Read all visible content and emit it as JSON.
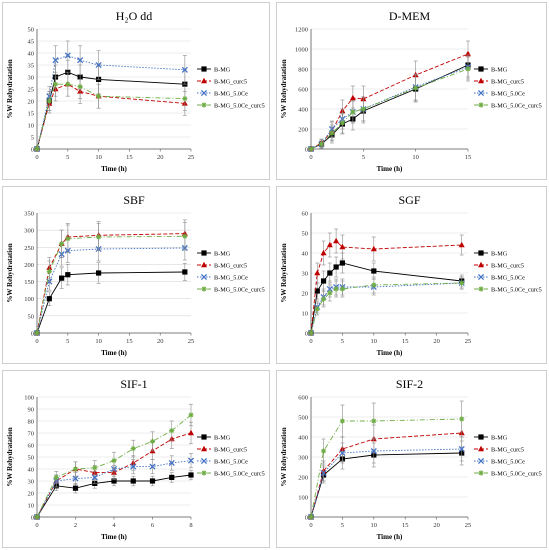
{
  "colors": {
    "B-MG": "#000000",
    "B-MG_curc5": "#c00000",
    "B-MG_5.0Ce": "#4472c4",
    "B-MG_5.0Ce_curc5": "#70ad47",
    "axis": "#595959",
    "grid": "#d9d9d9",
    "error": "#8c8c8c"
  },
  "series_names": [
    "B-MG",
    "B-MG_curc5",
    "B-MG_5.0Ce",
    "B-MG_5.0Ce_curc5"
  ],
  "markers": [
    "square",
    "triangle",
    "x",
    "star"
  ],
  "line_styles": [
    "solid",
    "dashed",
    "dotted",
    "dashdot"
  ],
  "chart_data": [
    {
      "id": "h2o",
      "type": "line",
      "title": "H₂O dd",
      "xlabel": "Time (h)",
      "ylabel": "%W Rehydratation",
      "xlim": [
        0,
        25
      ],
      "ylim": [
        0,
        50
      ],
      "xticks": [
        0,
        5,
        10,
        15,
        20,
        25
      ],
      "yticks": [
        0,
        5,
        10,
        15,
        20,
        25,
        30,
        35,
        40,
        45,
        50
      ],
      "legend": "right",
      "x": [
        0,
        2,
        3,
        5,
        7,
        10,
        24
      ],
      "series": [
        {
          "name": "B-MG",
          "values": [
            0,
            20,
            30,
            32,
            30,
            29,
            27
          ],
          "err": [
            0,
            4,
            5,
            5,
            5,
            6,
            6
          ]
        },
        {
          "name": "B-MG_curc5",
          "values": [
            0,
            19,
            25,
            27,
            24,
            22,
            19
          ],
          "err": [
            0,
            4,
            5,
            5,
            5,
            5,
            5
          ]
        },
        {
          "name": "B-MG_5.0Ce",
          "values": [
            0,
            22,
            37,
            39,
            37,
            35,
            33
          ],
          "err": [
            0,
            4,
            6,
            6,
            6,
            6,
            6
          ]
        },
        {
          "name": "B-MG_5.0Ce_curc5",
          "values": [
            0,
            20,
            27,
            27,
            26,
            22,
            21
          ],
          "err": [
            0,
            4,
            5,
            5,
            5,
            5,
            5
          ]
        }
      ]
    },
    {
      "id": "dmem",
      "type": "line",
      "title": "D-MEM",
      "xlabel": "Time (h)",
      "ylabel": "%W Rehydratation",
      "xlim": [
        0,
        15
      ],
      "ylim": [
        0,
        1200
      ],
      "xticks": [
        0,
        5,
        10,
        15
      ],
      "yticks": [
        0,
        200,
        400,
        600,
        800,
        1000,
        1200
      ],
      "legend": "right",
      "x": [
        0,
        1,
        2,
        3,
        4,
        5,
        10,
        15
      ],
      "series": [
        {
          "name": "B-MG",
          "values": [
            0,
            50,
            140,
            250,
            300,
            380,
            600,
            840
          ],
          "err": [
            0,
            40,
            80,
            100,
            110,
            120,
            130,
            120
          ]
        },
        {
          "name": "B-MG_curc5",
          "values": [
            0,
            60,
            180,
            380,
            510,
            500,
            740,
            950
          ],
          "err": [
            0,
            40,
            90,
            110,
            120,
            130,
            140,
            130
          ]
        },
        {
          "name": "B-MG_5.0Ce",
          "values": [
            0,
            50,
            200,
            300,
            370,
            400,
            620,
            820
          ],
          "err": [
            0,
            40,
            80,
            100,
            110,
            120,
            130,
            120
          ]
        },
        {
          "name": "B-MG_5.0Ce_curc5",
          "values": [
            0,
            50,
            160,
            260,
            370,
            400,
            610,
            800
          ],
          "err": [
            0,
            40,
            80,
            100,
            110,
            120,
            130,
            120
          ]
        }
      ]
    },
    {
      "id": "sbf",
      "type": "line",
      "title": "SBF",
      "xlabel": "Time (h)",
      "ylabel": "%W Rehydratation",
      "xlim": [
        0,
        25
      ],
      "ylim": [
        0,
        350
      ],
      "xticks": [
        0,
        5,
        10,
        15,
        20,
        25
      ],
      "yticks": [
        0,
        50,
        100,
        150,
        200,
        250,
        300,
        350
      ],
      "legend": "right",
      "x": [
        0,
        2,
        4,
        5,
        10,
        24
      ],
      "series": [
        {
          "name": "B-MG",
          "values": [
            0,
            100,
            160,
            170,
            175,
            178
          ],
          "err": [
            0,
            20,
            30,
            30,
            30,
            25
          ]
        },
        {
          "name": "B-MG_curc5",
          "values": [
            0,
            190,
            260,
            280,
            285,
            290
          ],
          "err": [
            0,
            30,
            40,
            40,
            40,
            40
          ]
        },
        {
          "name": "B-MG_5.0Ce",
          "values": [
            0,
            150,
            230,
            240,
            245,
            248
          ],
          "err": [
            0,
            25,
            35,
            35,
            35,
            35
          ]
        },
        {
          "name": "B-MG_5.0Ce_curc5",
          "values": [
            0,
            180,
            260,
            275,
            280,
            282
          ],
          "err": [
            0,
            30,
            40,
            40,
            40,
            40
          ]
        }
      ]
    },
    {
      "id": "sgf",
      "type": "line",
      "title": "SGF",
      "xlabel": "Time (h)",
      "ylabel": "%W Rehydratation",
      "xlim": [
        0,
        25
      ],
      "ylim": [
        0,
        60
      ],
      "xticks": [
        0,
        5,
        10,
        15,
        20,
        25
      ],
      "yticks": [
        0,
        10,
        20,
        30,
        40,
        50,
        60
      ],
      "legend": "right",
      "x": [
        0,
        1,
        2,
        3,
        4,
        5,
        10,
        24
      ],
      "series": [
        {
          "name": "B-MG",
          "values": [
            0,
            21,
            26,
            30,
            33,
            35,
            31,
            26
          ],
          "err": [
            0,
            4,
            5,
            5,
            5,
            5,
            4,
            3
          ]
        },
        {
          "name": "B-MG_curc5",
          "values": [
            0,
            30,
            40,
            44,
            46,
            43,
            42,
            44
          ],
          "err": [
            0,
            5,
            6,
            6,
            6,
            6,
            6,
            5
          ]
        },
        {
          "name": "B-MG_5.0Ce",
          "values": [
            0,
            13,
            18,
            22,
            23,
            23,
            23,
            25
          ],
          "err": [
            0,
            3,
            4,
            4,
            4,
            4,
            4,
            3
          ]
        },
        {
          "name": "B-MG_5.0Ce_curc5",
          "values": [
            0,
            12,
            17,
            20,
            22,
            22,
            24,
            25
          ],
          "err": [
            0,
            3,
            4,
            4,
            4,
            4,
            4,
            3
          ]
        }
      ]
    },
    {
      "id": "sif1",
      "type": "line",
      "title": "SIF-1",
      "xlabel": "Time (h)",
      "ylabel": "%W Rehydratation",
      "xlim": [
        0,
        8
      ],
      "ylim": [
        0,
        100
      ],
      "xticks": [
        0,
        2,
        4,
        6,
        8
      ],
      "yticks": [
        0,
        10,
        20,
        30,
        40,
        50,
        60,
        70,
        80,
        90,
        100
      ],
      "legend": "right",
      "x": [
        0,
        1,
        2,
        3,
        4,
        5,
        6,
        7,
        8
      ],
      "series": [
        {
          "name": "B-MG",
          "values": [
            0,
            26,
            24,
            28,
            30,
            30,
            30,
            33,
            35
          ],
          "err": [
            0,
            4,
            4,
            4,
            4,
            4,
            4,
            4,
            4
          ]
        },
        {
          "name": "B-MG_curc5",
          "values": [
            0,
            30,
            40,
            37,
            37,
            45,
            55,
            65,
            70
          ],
          "err": [
            0,
            5,
            6,
            6,
            6,
            6,
            7,
            8,
            9
          ]
        },
        {
          "name": "B-MG_5.0Ce",
          "values": [
            0,
            30,
            32,
            33,
            40,
            42,
            42,
            45,
            47
          ],
          "err": [
            0,
            5,
            5,
            5,
            6,
            6,
            6,
            6,
            6
          ]
        },
        {
          "name": "B-MG_5.0Ce_curc5",
          "values": [
            0,
            33,
            40,
            41,
            47,
            57,
            63,
            72,
            85
          ],
          "err": [
            0,
            5,
            6,
            6,
            7,
            7,
            8,
            8,
            9
          ]
        }
      ]
    },
    {
      "id": "sif2",
      "type": "line",
      "title": "SIF-2",
      "xlabel": "Time (h)",
      "ylabel": "%W Rehydratation",
      "xlim": [
        0,
        25
      ],
      "ylim": [
        0,
        600
      ],
      "xticks": [
        0,
        5,
        10,
        15,
        20,
        25
      ],
      "yticks": [
        0,
        100,
        200,
        300,
        400,
        500,
        600
      ],
      "legend": "right",
      "x": [
        0,
        2,
        5,
        10,
        24
      ],
      "series": [
        {
          "name": "B-MG",
          "values": [
            0,
            210,
            290,
            310,
            320
          ],
          "err": [
            0,
            40,
            50,
            60,
            60
          ]
        },
        {
          "name": "B-MG_curc5",
          "values": [
            0,
            230,
            340,
            390,
            420
          ],
          "err": [
            0,
            50,
            60,
            70,
            70
          ]
        },
        {
          "name": "B-MG_5.0Ce",
          "values": [
            0,
            220,
            320,
            330,
            340
          ],
          "err": [
            0,
            40,
            50,
            60,
            60
          ]
        },
        {
          "name": "B-MG_5.0Ce_curc5",
          "values": [
            0,
            330,
            480,
            480,
            490
          ],
          "err": [
            0,
            60,
            80,
            90,
            90
          ]
        }
      ]
    }
  ]
}
